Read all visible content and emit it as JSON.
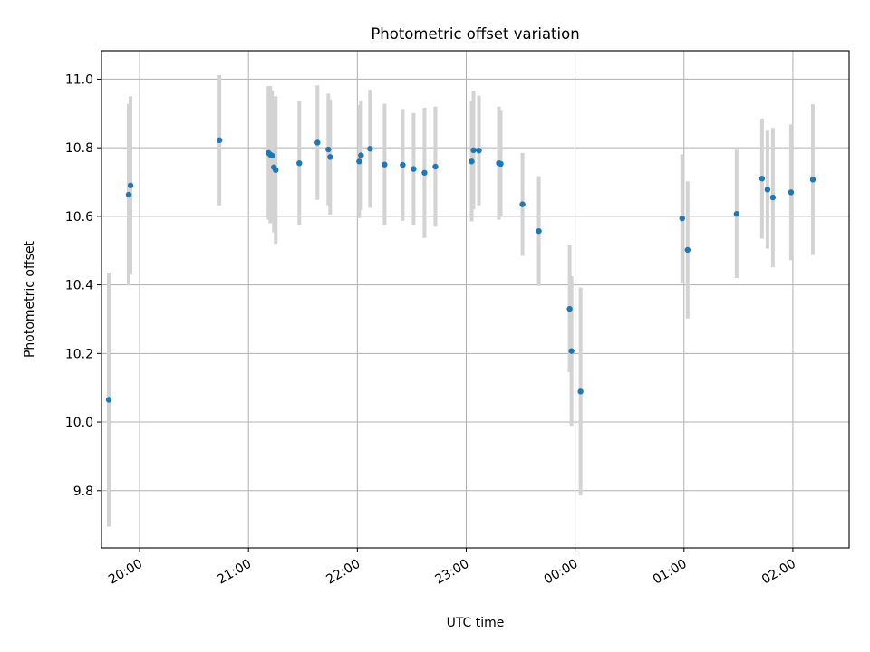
{
  "chart_data": {
    "type": "scatter",
    "title": "Photometric offset variation",
    "xlabel": "UTC time",
    "ylabel": "Photometric offset",
    "xlim": [
      "19:39",
      "02:31"
    ],
    "ylim": [
      9.633,
      11.083
    ],
    "grid": true,
    "x_tick_labels": [
      "20:00",
      "21:00",
      "22:00",
      "23:00",
      "00:00",
      "01:00",
      "02:00"
    ],
    "y_tick_labels": [
      "9.8",
      "10.0",
      "10.2",
      "10.4",
      "10.6",
      "10.8",
      "11.0"
    ],
    "series": [
      {
        "marker_color": "#1f77b4",
        "errorbar_color": "#d3d3d3",
        "points": [
          {
            "t": "19:43",
            "y": 10.065,
            "err": 0.37
          },
          {
            "t": "19:54",
            "y": 10.663,
            "err": 0.265
          },
          {
            "t": "19:55",
            "y": 10.69,
            "err": 0.26
          },
          {
            "t": "20:44",
            "y": 10.822,
            "err": 0.19
          },
          {
            "t": "21:11",
            "y": 10.785,
            "err": 0.195
          },
          {
            "t": "21:12",
            "y": 10.78,
            "err": 0.2
          },
          {
            "t": "21:13",
            "y": 10.777,
            "err": 0.19
          },
          {
            "t": "21:14",
            "y": 10.743,
            "err": 0.19
          },
          {
            "t": "21:15",
            "y": 10.735,
            "err": 0.215
          },
          {
            "t": "21:28",
            "y": 10.755,
            "err": 0.18
          },
          {
            "t": "21:38",
            "y": 10.815,
            "err": 0.167
          },
          {
            "t": "21:44",
            "y": 10.795,
            "err": 0.163
          },
          {
            "t": "21:45",
            "y": 10.773,
            "err": 0.168
          },
          {
            "t": "22:01",
            "y": 10.76,
            "err": 0.165
          },
          {
            "t": "22:02",
            "y": 10.778,
            "err": 0.16
          },
          {
            "t": "22:07",
            "y": 10.797,
            "err": 0.172
          },
          {
            "t": "22:15",
            "y": 10.751,
            "err": 0.177
          },
          {
            "t": "22:25",
            "y": 10.75,
            "err": 0.163
          },
          {
            "t": "22:31",
            "y": 10.738,
            "err": 0.163
          },
          {
            "t": "22:37",
            "y": 10.727,
            "err": 0.19
          },
          {
            "t": "22:43",
            "y": 10.745,
            "err": 0.175
          },
          {
            "t": "23:03",
            "y": 10.76,
            "err": 0.175
          },
          {
            "t": "23:04",
            "y": 10.793,
            "err": 0.173
          },
          {
            "t": "23:07",
            "y": 10.792,
            "err": 0.16
          },
          {
            "t": "23:18",
            "y": 10.755,
            "err": 0.165
          },
          {
            "t": "23:19",
            "y": 10.753,
            "err": 0.155
          },
          {
            "t": "23:31",
            "y": 10.635,
            "err": 0.15
          },
          {
            "t": "23:40",
            "y": 10.557,
            "err": 0.16
          },
          {
            "t": "23:57",
            "y": 10.33,
            "err": 0.185
          },
          {
            "t": "23:58",
            "y": 10.207,
            "err": 0.218
          },
          {
            "t": "00:03",
            "y": 10.089,
            "err": 0.303
          },
          {
            "t": "00:59",
            "y": 10.594,
            "err": 0.187
          },
          {
            "t": "01:02",
            "y": 10.502,
            "err": 0.2
          },
          {
            "t": "01:29",
            "y": 10.607,
            "err": 0.187
          },
          {
            "t": "01:43",
            "y": 10.71,
            "err": 0.175
          },
          {
            "t": "01:46",
            "y": 10.678,
            "err": 0.172
          },
          {
            "t": "01:49",
            "y": 10.655,
            "err": 0.203
          },
          {
            "t": "01:59",
            "y": 10.67,
            "err": 0.198
          },
          {
            "t": "02:11",
            "y": 10.707,
            "err": 0.22
          }
        ]
      }
    ]
  }
}
